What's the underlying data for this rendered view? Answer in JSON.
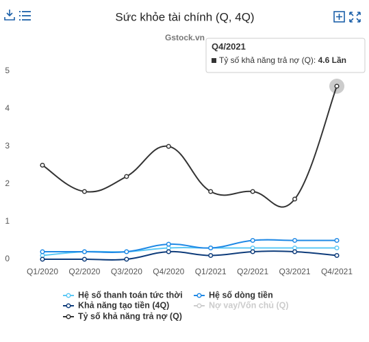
{
  "chart_data": {
    "type": "line",
    "title": "Sức khỏe tài chính (Q, 4Q)",
    "subtitle": "Gstock.vn",
    "categories": [
      "Q1/2020",
      "Q2/2020",
      "Q3/2020",
      "Q4/2020",
      "Q1/2021",
      "Q2/2021",
      "Q3/2021",
      "Q4/2021"
    ],
    "ylim": [
      0,
      5
    ],
    "yticks": [
      0,
      1,
      2,
      3,
      4,
      5
    ],
    "grid": false,
    "series": [
      {
        "name": "Hệ số thanh toán tức thời",
        "color": "#5bc8f5",
        "values": [
          0.1,
          0.2,
          0.2,
          0.3,
          0.3,
          0.3,
          0.3,
          0.3
        ]
      },
      {
        "name": "Hệ số dòng tiền",
        "color": "#1e88e5",
        "values": [
          0.2,
          0.2,
          0.2,
          0.4,
          0.3,
          0.5,
          0.5,
          0.5
        ]
      },
      {
        "name": "Khả năng tạo tiền (4Q)",
        "color": "#0d3b7a",
        "values": [
          0,
          0,
          0,
          0.2,
          0.1,
          0.2,
          0.2,
          0.1
        ]
      },
      {
        "name": "Nợ vay/Vốn chủ (Q)",
        "color": "#cccccc",
        "hidden": true,
        "values": [
          null,
          null,
          null,
          null,
          null,
          null,
          null,
          null
        ]
      },
      {
        "name": "Tỷ số khả năng trả nợ (Q)",
        "color": "#333333",
        "values": [
          2.5,
          1.8,
          2.2,
          3.0,
          1.8,
          1.8,
          1.6,
          4.6
        ]
      }
    ],
    "tooltip": {
      "title": "Q4/2021",
      "label": "Tỷ số khả năng trả nợ (Q):",
      "value": "4.6 Lần"
    }
  }
}
